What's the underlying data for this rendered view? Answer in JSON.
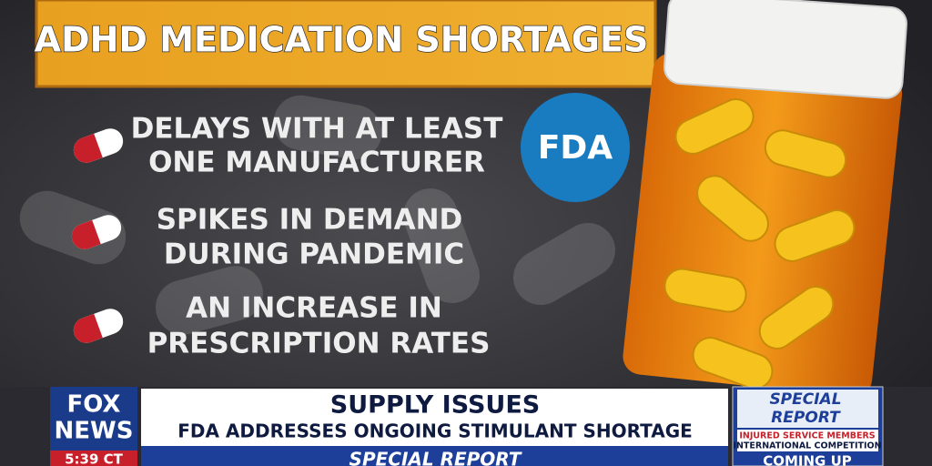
{
  "graphic": {
    "title": "ADHD MEDICATION SHORTAGES",
    "bullets": [
      {
        "lines": [
          "DELAYS WITH AT LEAST",
          "ONE MANUFACTURER"
        ]
      },
      {
        "lines": [
          "SPIKES IN DEMAND",
          "DURING PANDEMIC"
        ]
      },
      {
        "lines": [
          "AN INCREASE IN",
          "PRESCRIPTION RATES"
        ]
      }
    ],
    "badge": "FDA"
  },
  "lower_third": {
    "network": [
      "FOX",
      "NEWS"
    ],
    "time": "5:39 CT",
    "headline": "SUPPLY ISSUES",
    "subheadline": "FDA ADDRESSES ONGOING STIMULANT SHORTAGE",
    "show_strip": "SPECIAL REPORT",
    "promo": {
      "show": [
        "SPECIAL",
        "REPORT"
      ],
      "lines": [
        "INJURED SERVICE MEMBERS",
        "INTERNATIONAL COMPETITION"
      ],
      "cta": "COMING UP"
    }
  }
}
